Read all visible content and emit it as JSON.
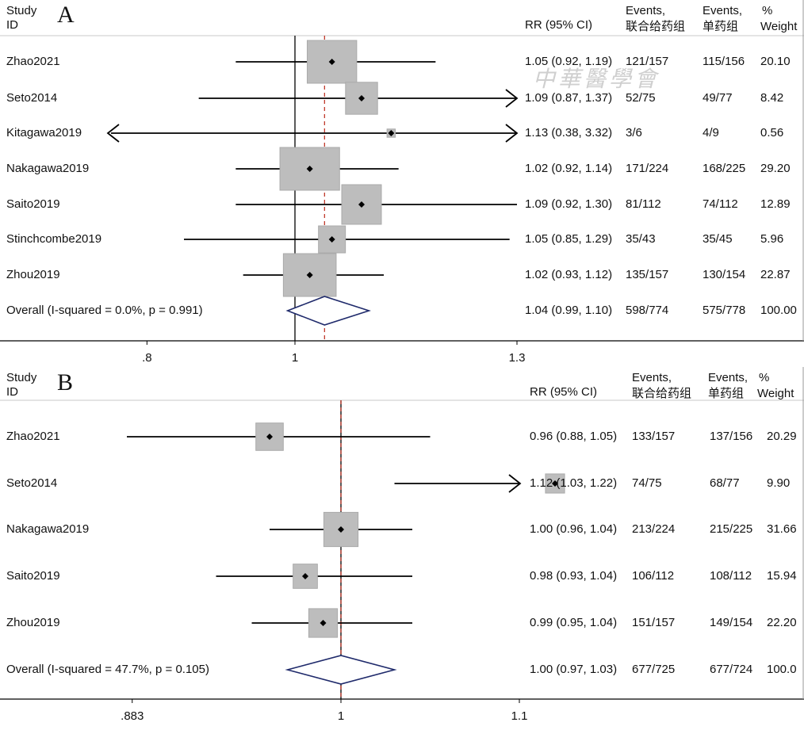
{
  "watermark": "中華醫學會",
  "chart_data": [
    {
      "type": "forest",
      "panel": "A",
      "headers": {
        "study": "Study",
        "id": "ID",
        "rr": "RR (95% CI)",
        "events1": "Events,",
        "events1_sub": "联合给药组",
        "events2": "Events,",
        "events2_sub": "单药组",
        "weight": "%",
        "weight_sub": "Weight"
      },
      "xlim": [
        0.7,
        1.35
      ],
      "xticks": [
        {
          "value": 0.8,
          "label": ".8"
        },
        {
          "value": 1,
          "label": "1"
        },
        {
          "value": 1.3,
          "label": "1.3"
        }
      ],
      "overall_line": 1.04,
      "studies": [
        {
          "id": "Zhao2021",
          "rr": 1.05,
          "lo": 0.92,
          "hi": 1.19,
          "ci_text": "1.05 (0.92, 1.19)",
          "events1": "121/157",
          "events2": "115/156",
          "weight": "20.10"
        },
        {
          "id": "Seto2014",
          "rr": 1.09,
          "lo": 0.87,
          "hi": 1.37,
          "ci_text": "1.09 (0.87, 1.37)",
          "events1": "52/75",
          "events2": "49/77",
          "weight": "8.42"
        },
        {
          "id": "Kitagawa2019",
          "rr": 1.13,
          "lo": 0.38,
          "hi": 3.32,
          "ci_text": "1.13 (0.38, 3.32)",
          "events1": "3/6",
          "events2": "4/9",
          "weight": "0.56"
        },
        {
          "id": "Nakagawa2019",
          "rr": 1.02,
          "lo": 0.92,
          "hi": 1.14,
          "ci_text": "1.02 (0.92, 1.14)",
          "events1": "171/224",
          "events2": "168/225",
          "weight": "29.20"
        },
        {
          "id": "Saito2019",
          "rr": 1.09,
          "lo": 0.92,
          "hi": 1.3,
          "ci_text": "1.09 (0.92, 1.30)",
          "events1": "81/112",
          "events2": "74/112",
          "weight": "12.89"
        },
        {
          "id": "Stinchcombe2019",
          "rr": 1.05,
          "lo": 0.85,
          "hi": 1.29,
          "ci_text": "1.05 (0.85, 1.29)",
          "events1": "35/43",
          "events2": "35/45",
          "weight": "5.96"
        },
        {
          "id": "Zhou2019",
          "rr": 1.02,
          "lo": 0.93,
          "hi": 1.12,
          "ci_text": "1.02 (0.93, 1.12)",
          "events1": "135/157",
          "events2": "130/154",
          "weight": "22.87"
        }
      ],
      "overall": {
        "id": "Overall  (I-squared = 0.0%, p = 0.991)",
        "rr": 1.04,
        "lo": 0.99,
        "hi": 1.1,
        "ci_text": "1.04 (0.99, 1.10)",
        "events1": "598/774",
        "events2": "575/778",
        "weight": "100.00"
      }
    },
    {
      "type": "forest",
      "panel": "B",
      "headers": {
        "study": "Study",
        "id": "ID",
        "rr": "RR (95% CI)",
        "events1": "Events,",
        "events1_sub": "联合给药组",
        "events2": "Events,",
        "events2_sub": "单药组",
        "weight": "%",
        "weight_sub": "Weight"
      },
      "xlim": [
        0.85,
        1.17
      ],
      "xticks": [
        {
          "value": 0.883,
          "label": ".883"
        },
        {
          "value": 1,
          "label": "1"
        },
        {
          "value": 1.1,
          "label": "1.1"
        }
      ],
      "overall_line": 1.0,
      "studies": [
        {
          "id": "Zhao2021",
          "rr": 0.96,
          "lo": 0.88,
          "hi": 1.05,
          "ci_text": "0.96 (0.88, 1.05)",
          "events1": "133/157",
          "events2": "137/156",
          "weight": "20.29"
        },
        {
          "id": "Seto2014",
          "rr": 1.12,
          "lo": 1.03,
          "hi": 1.22,
          "ci_text": "1.12 (1.03, 1.22)",
          "events1": "74/75",
          "events2": "68/77",
          "weight": "9.90"
        },
        {
          "id": "Nakagawa2019",
          "rr": 1.0,
          "lo": 0.96,
          "hi": 1.04,
          "ci_text": "1.00 (0.96, 1.04)",
          "events1": "213/224",
          "events2": "215/225",
          "weight": "31.66"
        },
        {
          "id": "Saito2019",
          "rr": 0.98,
          "lo": 0.93,
          "hi": 1.04,
          "ci_text": "0.98 (0.93, 1.04)",
          "events1": "106/112",
          "events2": "108/112",
          "weight": "15.94"
        },
        {
          "id": "Zhou2019",
          "rr": 0.99,
          "lo": 0.95,
          "hi": 1.04,
          "ci_text": "0.99 (0.95, 1.04)",
          "events1": "151/157",
          "events2": "149/154",
          "weight": "22.20"
        }
      ],
      "overall": {
        "id": "Overall  (I-squared = 47.7%, p = 0.105)",
        "rr": 1.0,
        "lo": 0.97,
        "hi": 1.03,
        "ci_text": "1.00 (0.97, 1.03)",
        "events1": "677/725",
        "events2": "677/724",
        "weight": "100.0"
      }
    }
  ]
}
